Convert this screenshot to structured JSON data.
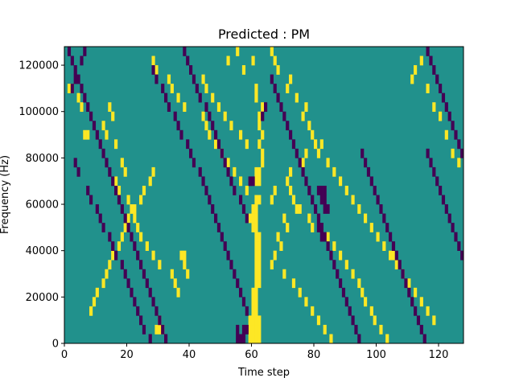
{
  "chart_data": {
    "type": "heatmap",
    "title": "Predicted : PM",
    "xlabel": "Time step",
    "ylabel": "Frequency (Hz)",
    "xlim": [
      0,
      128
    ],
    "ylim": [
      0,
      128000
    ],
    "x_ticks": [
      0,
      20,
      40,
      60,
      80,
      100,
      120
    ],
    "x_tick_labels": [
      "0",
      "20",
      "40",
      "60",
      "80",
      "100",
      "120"
    ],
    "y_ticks": [
      0,
      20000,
      40000,
      60000,
      80000,
      100000,
      120000
    ],
    "y_tick_labels": [
      "0",
      "20000",
      "40000",
      "60000",
      "80000",
      "100000",
      "120000"
    ],
    "grid": false,
    "colors": {
      "background": "#21918c",
      "high": "#fde725",
      "low": "#440154"
    },
    "cell_size": {
      "time_steps": 1,
      "frequency_hz": 4000
    },
    "high_cells": [
      [
        59,
        0
      ],
      [
        60,
        0
      ],
      [
        61,
        0
      ],
      [
        62,
        0
      ],
      [
        59,
        1
      ],
      [
        60,
        1
      ],
      [
        61,
        1
      ],
      [
        62,
        1
      ],
      [
        59,
        2
      ],
      [
        60,
        2
      ],
      [
        61,
        2
      ],
      [
        62,
        2
      ],
      [
        60,
        3
      ],
      [
        61,
        3
      ],
      [
        60,
        4
      ],
      [
        61,
        4
      ],
      [
        60,
        5
      ],
      [
        61,
        5
      ],
      [
        61,
        6
      ],
      [
        62,
        6
      ],
      [
        61,
        7
      ],
      [
        62,
        7
      ],
      [
        61,
        8
      ],
      [
        62,
        8
      ],
      [
        61,
        9
      ],
      [
        62,
        9
      ],
      [
        61,
        10
      ],
      [
        62,
        10
      ],
      [
        61,
        11
      ],
      [
        62,
        11
      ],
      [
        60,
        12
      ],
      [
        61,
        12
      ],
      [
        59,
        13
      ],
      [
        60,
        13
      ],
      [
        61,
        13
      ],
      [
        60,
        14
      ],
      [
        61,
        14
      ],
      [
        61,
        15
      ],
      [
        62,
        15
      ],
      [
        61,
        17
      ],
      [
        62,
        17
      ],
      [
        61,
        18
      ],
      [
        62,
        18
      ],
      [
        63,
        19
      ],
      [
        63,
        20
      ],
      [
        62,
        21
      ],
      [
        63,
        22
      ],
      [
        62,
        23
      ],
      [
        62,
        24
      ],
      [
        63,
        25
      ],
      [
        61,
        26
      ],
      [
        61,
        27
      ],
      [
        29,
        1
      ],
      [
        30,
        1
      ],
      [
        31,
        1
      ],
      [
        30,
        2
      ],
      [
        37,
        9
      ],
      [
        38,
        9
      ],
      [
        39,
        7
      ],
      [
        38,
        8
      ],
      [
        1,
        27
      ],
      [
        2,
        27
      ],
      [
        6,
        22
      ],
      [
        7,
        22
      ],
      [
        4,
        26
      ],
      [
        5,
        25
      ],
      [
        14,
        25
      ],
      [
        15,
        24
      ],
      [
        12,
        23
      ],
      [
        13,
        22
      ],
      [
        16,
        21
      ],
      [
        18,
        19
      ],
      [
        19,
        18
      ],
      [
        16,
        17
      ],
      [
        17,
        16
      ],
      [
        20,
        15
      ],
      [
        21,
        14
      ],
      [
        22,
        13
      ],
      [
        23,
        12
      ],
      [
        24,
        11
      ],
      [
        26,
        10
      ],
      [
        28,
        9
      ],
      [
        30,
        8
      ],
      [
        34,
        7
      ],
      [
        35,
        6
      ],
      [
        36,
        5
      ],
      [
        28,
        30
      ],
      [
        29,
        29
      ],
      [
        33,
        28
      ],
      [
        34,
        27
      ],
      [
        36,
        26
      ],
      [
        38,
        25
      ],
      [
        44,
        24
      ],
      [
        45,
        23
      ],
      [
        46,
        22
      ],
      [
        48,
        21
      ],
      [
        50,
        20
      ],
      [
        52,
        19
      ],
      [
        54,
        18
      ],
      [
        56,
        17
      ],
      [
        58,
        16
      ],
      [
        57,
        29
      ],
      [
        52,
        30
      ],
      [
        55,
        31
      ],
      [
        60,
        30
      ],
      [
        66,
        31
      ],
      [
        67,
        30
      ],
      [
        68,
        29
      ],
      [
        71,
        27
      ],
      [
        72,
        28
      ],
      [
        74,
        26
      ],
      [
        76,
        24
      ],
      [
        77,
        25
      ],
      [
        78,
        23
      ],
      [
        79,
        22
      ],
      [
        81,
        20
      ],
      [
        82,
        21
      ],
      [
        84,
        19
      ],
      [
        86,
        18
      ],
      [
        88,
        17
      ],
      [
        90,
        16
      ],
      [
        92,
        15
      ],
      [
        94,
        14
      ],
      [
        96,
        13
      ],
      [
        98,
        12
      ],
      [
        100,
        11
      ],
      [
        102,
        10
      ],
      [
        104,
        9
      ],
      [
        105,
        9
      ],
      [
        106,
        8
      ],
      [
        108,
        7
      ],
      [
        110,
        6
      ],
      [
        112,
        5
      ],
      [
        114,
        4
      ],
      [
        116,
        3
      ],
      [
        118,
        2
      ],
      [
        111,
        28
      ],
      [
        112,
        29
      ],
      [
        114,
        30
      ],
      [
        116,
        27
      ],
      [
        118,
        25
      ],
      [
        120,
        24
      ],
      [
        122,
        22
      ],
      [
        124,
        20
      ],
      [
        126,
        19
      ],
      [
        66,
        15
      ],
      [
        67,
        16
      ],
      [
        71,
        17
      ],
      [
        72,
        18
      ],
      [
        76,
        19
      ],
      [
        77,
        20
      ],
      [
        80,
        21
      ],
      [
        75,
        14
      ],
      [
        78,
        13
      ],
      [
        79,
        12
      ],
      [
        84,
        11
      ],
      [
        86,
        10
      ],
      [
        88,
        9
      ],
      [
        90,
        8
      ],
      [
        92,
        7
      ],
      [
        94,
        6
      ],
      [
        95,
        5
      ],
      [
        96,
        4
      ],
      [
        98,
        3
      ],
      [
        99,
        2
      ],
      [
        101,
        1
      ],
      [
        103,
        0
      ],
      [
        8,
        3
      ],
      [
        9,
        4
      ],
      [
        10,
        5
      ],
      [
        12,
        6
      ],
      [
        13,
        7
      ],
      [
        14,
        8
      ],
      [
        15,
        9
      ],
      [
        17,
        10
      ],
      [
        18,
        11
      ],
      [
        19,
        12
      ],
      [
        20,
        13
      ],
      [
        22,
        14
      ],
      [
        24,
        15
      ],
      [
        25,
        16
      ],
      [
        27,
        17
      ],
      [
        28,
        18
      ],
      [
        44,
        28
      ],
      [
        45,
        27
      ],
      [
        47,
        26
      ],
      [
        49,
        25
      ],
      [
        51,
        24
      ],
      [
        53,
        23
      ],
      [
        56,
        22
      ],
      [
        58,
        21
      ],
      [
        72,
        16
      ],
      [
        73,
        15
      ],
      [
        74,
        14
      ],
      [
        70,
        13
      ],
      [
        71,
        12
      ],
      [
        68,
        11
      ],
      [
        69,
        10
      ],
      [
        67,
        9
      ],
      [
        66,
        8
      ],
      [
        70,
        7
      ],
      [
        73,
        6
      ],
      [
        75,
        5
      ],
      [
        77,
        4
      ],
      [
        79,
        3
      ],
      [
        81,
        2
      ],
      [
        83,
        1
      ],
      [
        85,
        0
      ]
    ],
    "low_cells": [
      [
        55,
        0
      ],
      [
        56,
        0
      ],
      [
        57,
        0
      ],
      [
        55,
        1
      ],
      [
        57,
        1
      ],
      [
        58,
        1
      ],
      [
        59,
        17
      ],
      [
        60,
        17
      ],
      [
        63,
        24
      ],
      [
        64,
        25
      ],
      [
        2,
        27
      ],
      [
        3,
        28
      ],
      [
        5,
        30
      ],
      [
        6,
        31
      ],
      [
        3,
        19
      ],
      [
        4,
        18
      ],
      [
        7,
        16
      ],
      [
        8,
        15
      ],
      [
        10,
        14
      ],
      [
        11,
        13
      ],
      [
        12,
        12
      ],
      [
        14,
        11
      ],
      [
        15,
        10
      ],
      [
        16,
        9
      ],
      [
        18,
        8
      ],
      [
        19,
        7
      ],
      [
        20,
        6
      ],
      [
        21,
        5
      ],
      [
        22,
        4
      ],
      [
        23,
        3
      ],
      [
        24,
        2
      ],
      [
        25,
        1
      ],
      [
        27,
        0
      ],
      [
        28,
        29
      ],
      [
        29,
        28
      ],
      [
        31,
        27
      ],
      [
        32,
        26
      ],
      [
        33,
        25
      ],
      [
        35,
        24
      ],
      [
        36,
        23
      ],
      [
        37,
        22
      ],
      [
        39,
        21
      ],
      [
        40,
        20
      ],
      [
        41,
        19
      ],
      [
        43,
        18
      ],
      [
        44,
        17
      ],
      [
        45,
        16
      ],
      [
        46,
        15
      ],
      [
        47,
        14
      ],
      [
        48,
        13
      ],
      [
        49,
        12
      ],
      [
        50,
        11
      ],
      [
        51,
        10
      ],
      [
        52,
        9
      ],
      [
        53,
        8
      ],
      [
        54,
        7
      ],
      [
        55,
        6
      ],
      [
        56,
        5
      ],
      [
        57,
        4
      ],
      [
        58,
        3
      ],
      [
        66,
        28
      ],
      [
        67,
        27
      ],
      [
        68,
        26
      ],
      [
        69,
        25
      ],
      [
        70,
        24
      ],
      [
        71,
        23
      ],
      [
        72,
        22
      ],
      [
        73,
        21
      ],
      [
        74,
        20
      ],
      [
        75,
        19
      ],
      [
        76,
        18
      ],
      [
        77,
        17
      ],
      [
        78,
        16
      ],
      [
        79,
        15
      ],
      [
        80,
        14
      ],
      [
        81,
        13
      ],
      [
        82,
        12
      ],
      [
        83,
        11
      ],
      [
        84,
        10
      ],
      [
        85,
        9
      ],
      [
        86,
        8
      ],
      [
        87,
        7
      ],
      [
        88,
        6
      ],
      [
        89,
        5
      ],
      [
        90,
        4
      ],
      [
        91,
        3
      ],
      [
        92,
        2
      ],
      [
        93,
        1
      ],
      [
        94,
        0
      ],
      [
        81,
        16
      ],
      [
        82,
        16
      ],
      [
        83,
        16
      ],
      [
        82,
        15
      ],
      [
        83,
        15
      ],
      [
        83,
        14
      ],
      [
        84,
        14
      ],
      [
        81,
        12
      ],
      [
        82,
        12
      ],
      [
        82,
        11
      ],
      [
        95,
        20
      ],
      [
        96,
        19
      ],
      [
        97,
        18
      ],
      [
        98,
        17
      ],
      [
        99,
        16
      ],
      [
        100,
        15
      ],
      [
        101,
        14
      ],
      [
        102,
        13
      ],
      [
        103,
        12
      ],
      [
        104,
        11
      ],
      [
        105,
        10
      ],
      [
        106,
        9
      ],
      [
        107,
        8
      ],
      [
        108,
        7
      ],
      [
        109,
        6
      ],
      [
        110,
        5
      ],
      [
        111,
        4
      ],
      [
        112,
        3
      ],
      [
        113,
        2
      ],
      [
        114,
        1
      ],
      [
        115,
        0
      ],
      [
        116,
        20
      ],
      [
        117,
        19
      ],
      [
        118,
        18
      ],
      [
        119,
        17
      ],
      [
        120,
        16
      ],
      [
        121,
        15
      ],
      [
        122,
        14
      ],
      [
        123,
        13
      ],
      [
        124,
        12
      ],
      [
        125,
        11
      ],
      [
        126,
        10
      ],
      [
        127,
        9
      ],
      [
        126,
        21
      ],
      [
        127,
        20
      ],
      [
        125,
        22
      ],
      [
        124,
        23
      ],
      [
        123,
        24
      ],
      [
        122,
        25
      ],
      [
        121,
        26
      ],
      [
        120,
        27
      ],
      [
        119,
        28
      ],
      [
        118,
        29
      ],
      [
        117,
        30
      ],
      [
        116,
        31
      ],
      [
        38,
        31
      ],
      [
        39,
        30
      ],
      [
        40,
        29
      ],
      [
        41,
        28
      ],
      [
        42,
        27
      ],
      [
        43,
        26
      ],
      [
        45,
        25
      ],
      [
        46,
        24
      ],
      [
        47,
        23
      ],
      [
        48,
        22
      ],
      [
        49,
        21
      ],
      [
        50,
        20
      ],
      [
        51,
        19
      ],
      [
        52,
        18
      ],
      [
        53,
        17
      ],
      [
        54,
        16
      ],
      [
        56,
        15
      ],
      [
        57,
        14
      ],
      [
        58,
        13
      ],
      [
        1,
        31
      ],
      [
        2,
        30
      ],
      [
        3,
        29
      ],
      [
        4,
        28
      ],
      [
        5,
        27
      ],
      [
        6,
        26
      ],
      [
        7,
        25
      ],
      [
        8,
        24
      ],
      [
        9,
        23
      ],
      [
        10,
        22
      ],
      [
        11,
        21
      ],
      [
        12,
        20
      ],
      [
        13,
        19
      ],
      [
        14,
        18
      ],
      [
        15,
        17
      ],
      [
        16,
        16
      ],
      [
        17,
        15
      ],
      [
        18,
        14
      ],
      [
        19,
        13
      ],
      [
        20,
        12
      ],
      [
        21,
        11
      ],
      [
        22,
        10
      ],
      [
        23,
        9
      ],
      [
        24,
        8
      ],
      [
        25,
        7
      ],
      [
        26,
        6
      ],
      [
        27,
        5
      ],
      [
        28,
        4
      ],
      [
        29,
        3
      ],
      [
        30,
        2
      ],
      [
        31,
        1
      ],
      [
        32,
        0
      ]
    ]
  }
}
